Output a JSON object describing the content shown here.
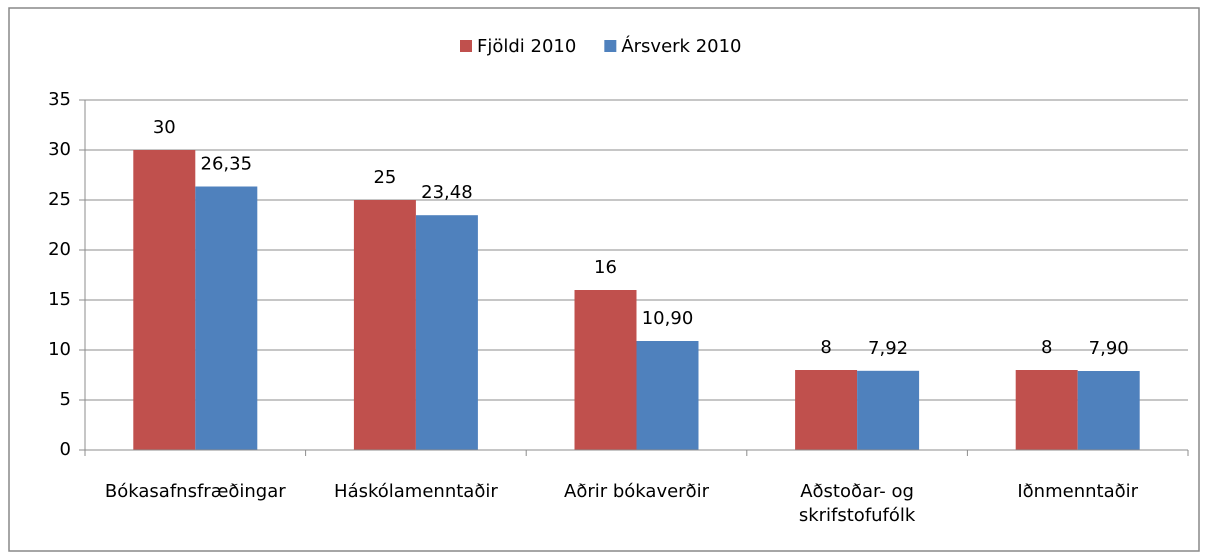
{
  "chart_data": {
    "type": "bar",
    "categories": [
      "Bókasafnsfræðingar",
      "Háskólamenntaðir",
      "Aðrir bókaverðir",
      "Aðstoðar- og skrifstofufólk",
      "Iðnmenntaðir"
    ],
    "series": [
      {
        "name": "Fjöldi 2010",
        "color": "#c0504d",
        "values": [
          30,
          25,
          16,
          8,
          8
        ],
        "value_labels": [
          "30",
          "25",
          "16",
          "8",
          "8"
        ]
      },
      {
        "name": "Ársverk 2010",
        "color": "#4f81bd",
        "values": [
          26.35,
          23.48,
          10.9,
          7.92,
          7.9
        ],
        "value_labels": [
          "26,35",
          "23,48",
          "10,90",
          "7,92",
          "7,90"
        ]
      }
    ],
    "ylim": [
      0,
      35
    ],
    "yticks": [
      0,
      5,
      10,
      15,
      20,
      25,
      30,
      35
    ],
    "grid": true,
    "legend": "top"
  }
}
